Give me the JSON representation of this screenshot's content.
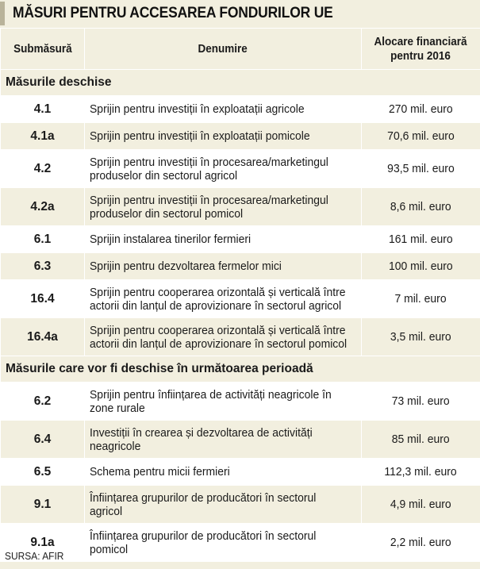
{
  "title": "MĂSURI PENTRU ACCESAREA FONDURILOR UE",
  "headers": {
    "code": "Submăsură",
    "name": "Denumire",
    "alloc_line1": "Alocare financiară",
    "alloc_line2": "pentru 2016"
  },
  "sections": [
    {
      "label": "Măsurile deschise",
      "rows": [
        {
          "code": "4.1",
          "name": [
            "Sprijin pentru investiții în exploatații agricole"
          ],
          "alloc": "270 mil. euro"
        },
        {
          "code": "4.1a",
          "name": [
            "Sprijin pentru investiții în exploatații pomicole"
          ],
          "alloc": "70,6 mil. euro"
        },
        {
          "code": "4.2",
          "name": [
            "Sprijin pentru investiții în procesarea/marketingul",
            "produselor din sectorul agricol"
          ],
          "alloc": "93,5 mil. euro"
        },
        {
          "code": "4.2a",
          "name": [
            "Sprijin pentru investiții în procesarea/marketingul",
            "produselor din sectorul pomicol"
          ],
          "alloc": "8,6 mil. euro"
        },
        {
          "code": "6.1",
          "name": [
            "Sprijin instalarea tinerilor fermieri"
          ],
          "alloc": "161 mil. euro"
        },
        {
          "code": "6.3",
          "name": [
            "Sprijin pentru dezvoltarea fermelor mici"
          ],
          "alloc": "100 mil. euro"
        },
        {
          "code": "16.4",
          "name": [
            "Sprijin pentru cooperarea orizontală și verticală între",
            "actorii din lanțul de aprovizionare în sectorul agricol"
          ],
          "alloc": "7 mil. euro"
        },
        {
          "code": "16.4a",
          "name": [
            "Sprijin pentru cooperarea orizontală și verticală între",
            "actorii din lanțul de aprovizionare în sectorul pomicol"
          ],
          "alloc": "3,5 mil. euro"
        }
      ]
    },
    {
      "label": "Măsurile care vor fi deschise în următoarea perioadă",
      "rows": [
        {
          "code": "6.2",
          "name": [
            "Sprijin pentru înființarea de activități neagricole în",
            "zone rurale"
          ],
          "alloc": "73 mil. euro"
        },
        {
          "code": "6.4",
          "name": [
            "Investiții în crearea și dezvoltarea de activități",
            "neagricole"
          ],
          "alloc": "85 mil. euro"
        },
        {
          "code": "6.5",
          "name": [
            "Schema pentru micii fermieri"
          ],
          "alloc": "112,3 mil. euro"
        },
        {
          "code": "9.1",
          "name": [
            "Înființarea grupurilor de producători în sectorul",
            "agricol"
          ],
          "alloc": "4,9 mil. euro"
        },
        {
          "code": "9.1a",
          "name": [
            "Înființarea grupurilor de producători în sectorul",
            "pomicol"
          ],
          "alloc": "2,2 mil. euro"
        }
      ]
    }
  ],
  "source": "SURSA: AFIR",
  "colors": {
    "tint": "#f2efdf",
    "white": "#ffffff",
    "accent": "#b9b39a"
  }
}
